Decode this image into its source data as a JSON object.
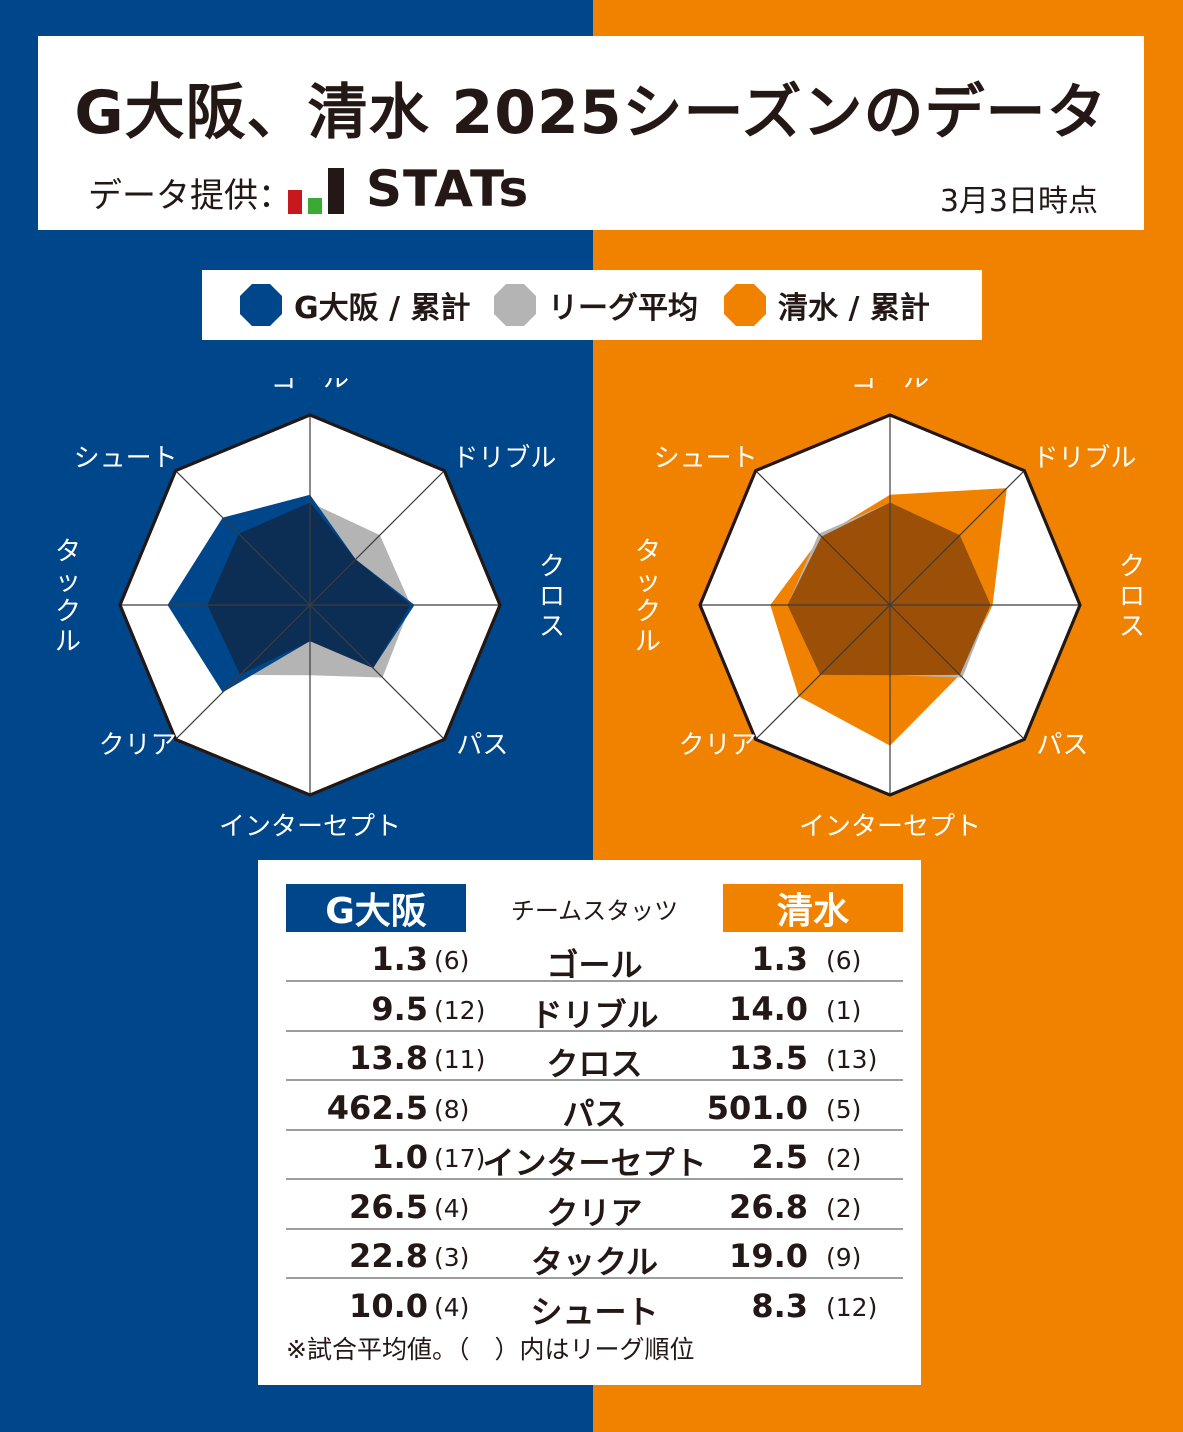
{
  "title": "G大阪、清水 2025シーズンのデータ",
  "provider_label": "データ提供：",
  "provider_logo_text": "STATs",
  "as_of": "3月3日時点",
  "colors": {
    "gosaka": "#00468b",
    "shimizu": "#f08200",
    "league": "#b4b4b4",
    "logo_red": "#c9171e",
    "logo_green": "#3aa935"
  },
  "legend": [
    {
      "label": "G大阪 / 累計",
      "color": "#00468b"
    },
    {
      "label": "リーグ平均",
      "color": "#b4b4b4"
    },
    {
      "label": "清水 / 累計",
      "color": "#f08200"
    }
  ],
  "chart_data": [
    {
      "type": "radar",
      "team": "G大阪",
      "axes": [
        "ゴール",
        "ドリブル",
        "クロス",
        "パス",
        "インターセプト",
        "クリア",
        "タックル",
        "シュート"
      ],
      "series": [
        {
          "name": "G大阪 / 累計",
          "values": [
            0.58,
            0.34,
            0.55,
            0.47,
            0.19,
            0.65,
            0.75,
            0.65
          ]
        },
        {
          "name": "リーグ平均",
          "values": [
            0.54,
            0.52,
            0.53,
            0.54,
            0.37,
            0.52,
            0.54,
            0.53
          ]
        }
      ]
    },
    {
      "type": "radar",
      "team": "清水",
      "axes": [
        "ゴール",
        "ドリブル",
        "クロス",
        "パス",
        "インターセプト",
        "クリア",
        "タックル",
        "シュート"
      ],
      "series": [
        {
          "name": "清水 / 累計",
          "values": [
            0.58,
            0.87,
            0.54,
            0.52,
            0.74,
            0.68,
            0.63,
            0.51
          ]
        },
        {
          "name": "リーグ平均",
          "values": [
            0.54,
            0.52,
            0.53,
            0.54,
            0.37,
            0.52,
            0.54,
            0.53
          ]
        }
      ]
    }
  ],
  "table": {
    "header": {
      "left": "G大阪",
      "middle": "チームスタッツ",
      "right": "清水"
    },
    "rows": [
      {
        "label": "ゴール",
        "g_val": "1.3",
        "g_rank": "(6)",
        "s_val": "1.3",
        "s_rank": "(6)"
      },
      {
        "label": "ドリブル",
        "g_val": "9.5",
        "g_rank": "(12)",
        "s_val": "14.0",
        "s_rank": "(1)"
      },
      {
        "label": "クロス",
        "g_val": "13.8",
        "g_rank": "(11)",
        "s_val": "13.5",
        "s_rank": "(13)"
      },
      {
        "label": "パス",
        "g_val": "462.5",
        "g_rank": "(8)",
        "s_val": "501.0",
        "s_rank": "(5)"
      },
      {
        "label": "インターセプト",
        "g_val": "1.0",
        "g_rank": "(17)",
        "s_val": "2.5",
        "s_rank": "(2)"
      },
      {
        "label": "クリア",
        "g_val": "26.5",
        "g_rank": "(4)",
        "s_val": "26.8",
        "s_rank": "(2)"
      },
      {
        "label": "タックル",
        "g_val": "22.8",
        "g_rank": "(3)",
        "s_val": "19.0",
        "s_rank": "(9)"
      },
      {
        "label": "シュート",
        "g_val": "10.0",
        "g_rank": "(4)",
        "s_val": "8.3",
        "s_rank": "(12)"
      }
    ],
    "footnote": "※試合平均値。（　）内はリーグ順位"
  }
}
